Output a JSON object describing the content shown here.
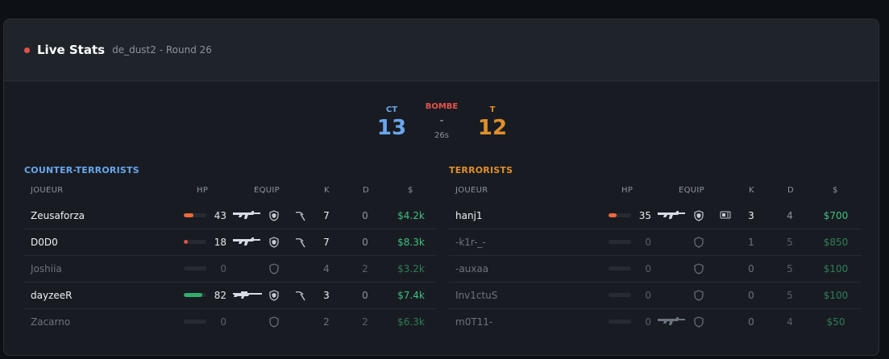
{
  "header": {
    "title": "Live Stats",
    "subtitle": "de_dust2 - Round 26",
    "live_color": "#e5534b"
  },
  "score": {
    "ct_label": "CT",
    "ct_score": "13",
    "t_label": "T",
    "t_score": "12",
    "bomb_label": "BOMBE",
    "bomb_state": "-",
    "bomb_timer": "26s"
  },
  "columns": {
    "player": "JOUEUR",
    "hp": "HP",
    "equip": "EQUIP",
    "kills": "K",
    "deaths": "D",
    "money": "$"
  },
  "ct": {
    "name": "COUNTER-TERRORISTS",
    "players": [
      {
        "name": "Zeusaforza",
        "hp": "43",
        "hp_frac": 0.43,
        "hp_color": "#f0683d",
        "weapon": "rifle-icon",
        "armor": "armor-helmet-icon",
        "utility": "defuse-kit-icon",
        "kills": "7",
        "deaths": "0",
        "money": "$4.2k",
        "alive": true
      },
      {
        "name": "D0D0",
        "hp": "18",
        "hp_frac": 0.18,
        "hp_color": "#e5534b",
        "weapon": "rifle-icon",
        "armor": "armor-helmet-icon",
        "utility": "defuse-kit-icon",
        "kills": "7",
        "deaths": "0",
        "money": "$8.3k",
        "alive": true
      },
      {
        "name": "Joshiia",
        "hp": "0",
        "hp_frac": 0,
        "hp_color": "#262b32",
        "weapon": "",
        "armor": "armor-empty-icon",
        "utility": "",
        "kills": "4",
        "deaths": "2",
        "money": "$3.2k",
        "alive": false
      },
      {
        "name": "dayzeeR",
        "hp": "82",
        "hp_frac": 0.82,
        "hp_color": "#2fae6d",
        "weapon": "sniper-icon",
        "armor": "armor-helmet-icon",
        "utility": "defuse-kit-icon",
        "kills": "3",
        "deaths": "0",
        "money": "$7.4k",
        "alive": true
      },
      {
        "name": "Zacarno",
        "hp": "0",
        "hp_frac": 0,
        "hp_color": "#262b32",
        "weapon": "",
        "armor": "armor-empty-icon",
        "utility": "",
        "kills": "2",
        "deaths": "2",
        "money": "$6.3k",
        "alive": false
      }
    ]
  },
  "t": {
    "name": "TERRORISTS",
    "players": [
      {
        "name": "hanj1",
        "hp": "35",
        "hp_frac": 0.35,
        "hp_color": "#f0683d",
        "weapon": "rifle-icon",
        "armor": "armor-helmet-icon",
        "utility": "bomb-icon",
        "kills": "3",
        "deaths": "4",
        "money": "$700",
        "alive": true
      },
      {
        "name": "-k1r-_-",
        "hp": "0",
        "hp_frac": 0,
        "hp_color": "#262b32",
        "weapon": "",
        "armor": "armor-empty-icon",
        "utility": "",
        "kills": "1",
        "deaths": "5",
        "money": "$850",
        "alive": false
      },
      {
        "name": "-auxaa",
        "hp": "0",
        "hp_frac": 0,
        "hp_color": "#262b32",
        "weapon": "",
        "armor": "armor-empty-icon",
        "utility": "",
        "kills": "0",
        "deaths": "5",
        "money": "$100",
        "alive": false
      },
      {
        "name": "Inv1ctuS",
        "hp": "0",
        "hp_frac": 0,
        "hp_color": "#262b32",
        "weapon": "",
        "armor": "armor-empty-icon",
        "utility": "",
        "kills": "0",
        "deaths": "5",
        "money": "$100",
        "alive": false
      },
      {
        "name": "m0T11-",
        "hp": "0",
        "hp_frac": 0,
        "hp_color": "#262b32",
        "weapon": "rifle-dim-icon",
        "armor": "armor-empty-icon",
        "utility": "",
        "kills": "0",
        "deaths": "4",
        "money": "$50",
        "alive": false
      }
    ]
  }
}
